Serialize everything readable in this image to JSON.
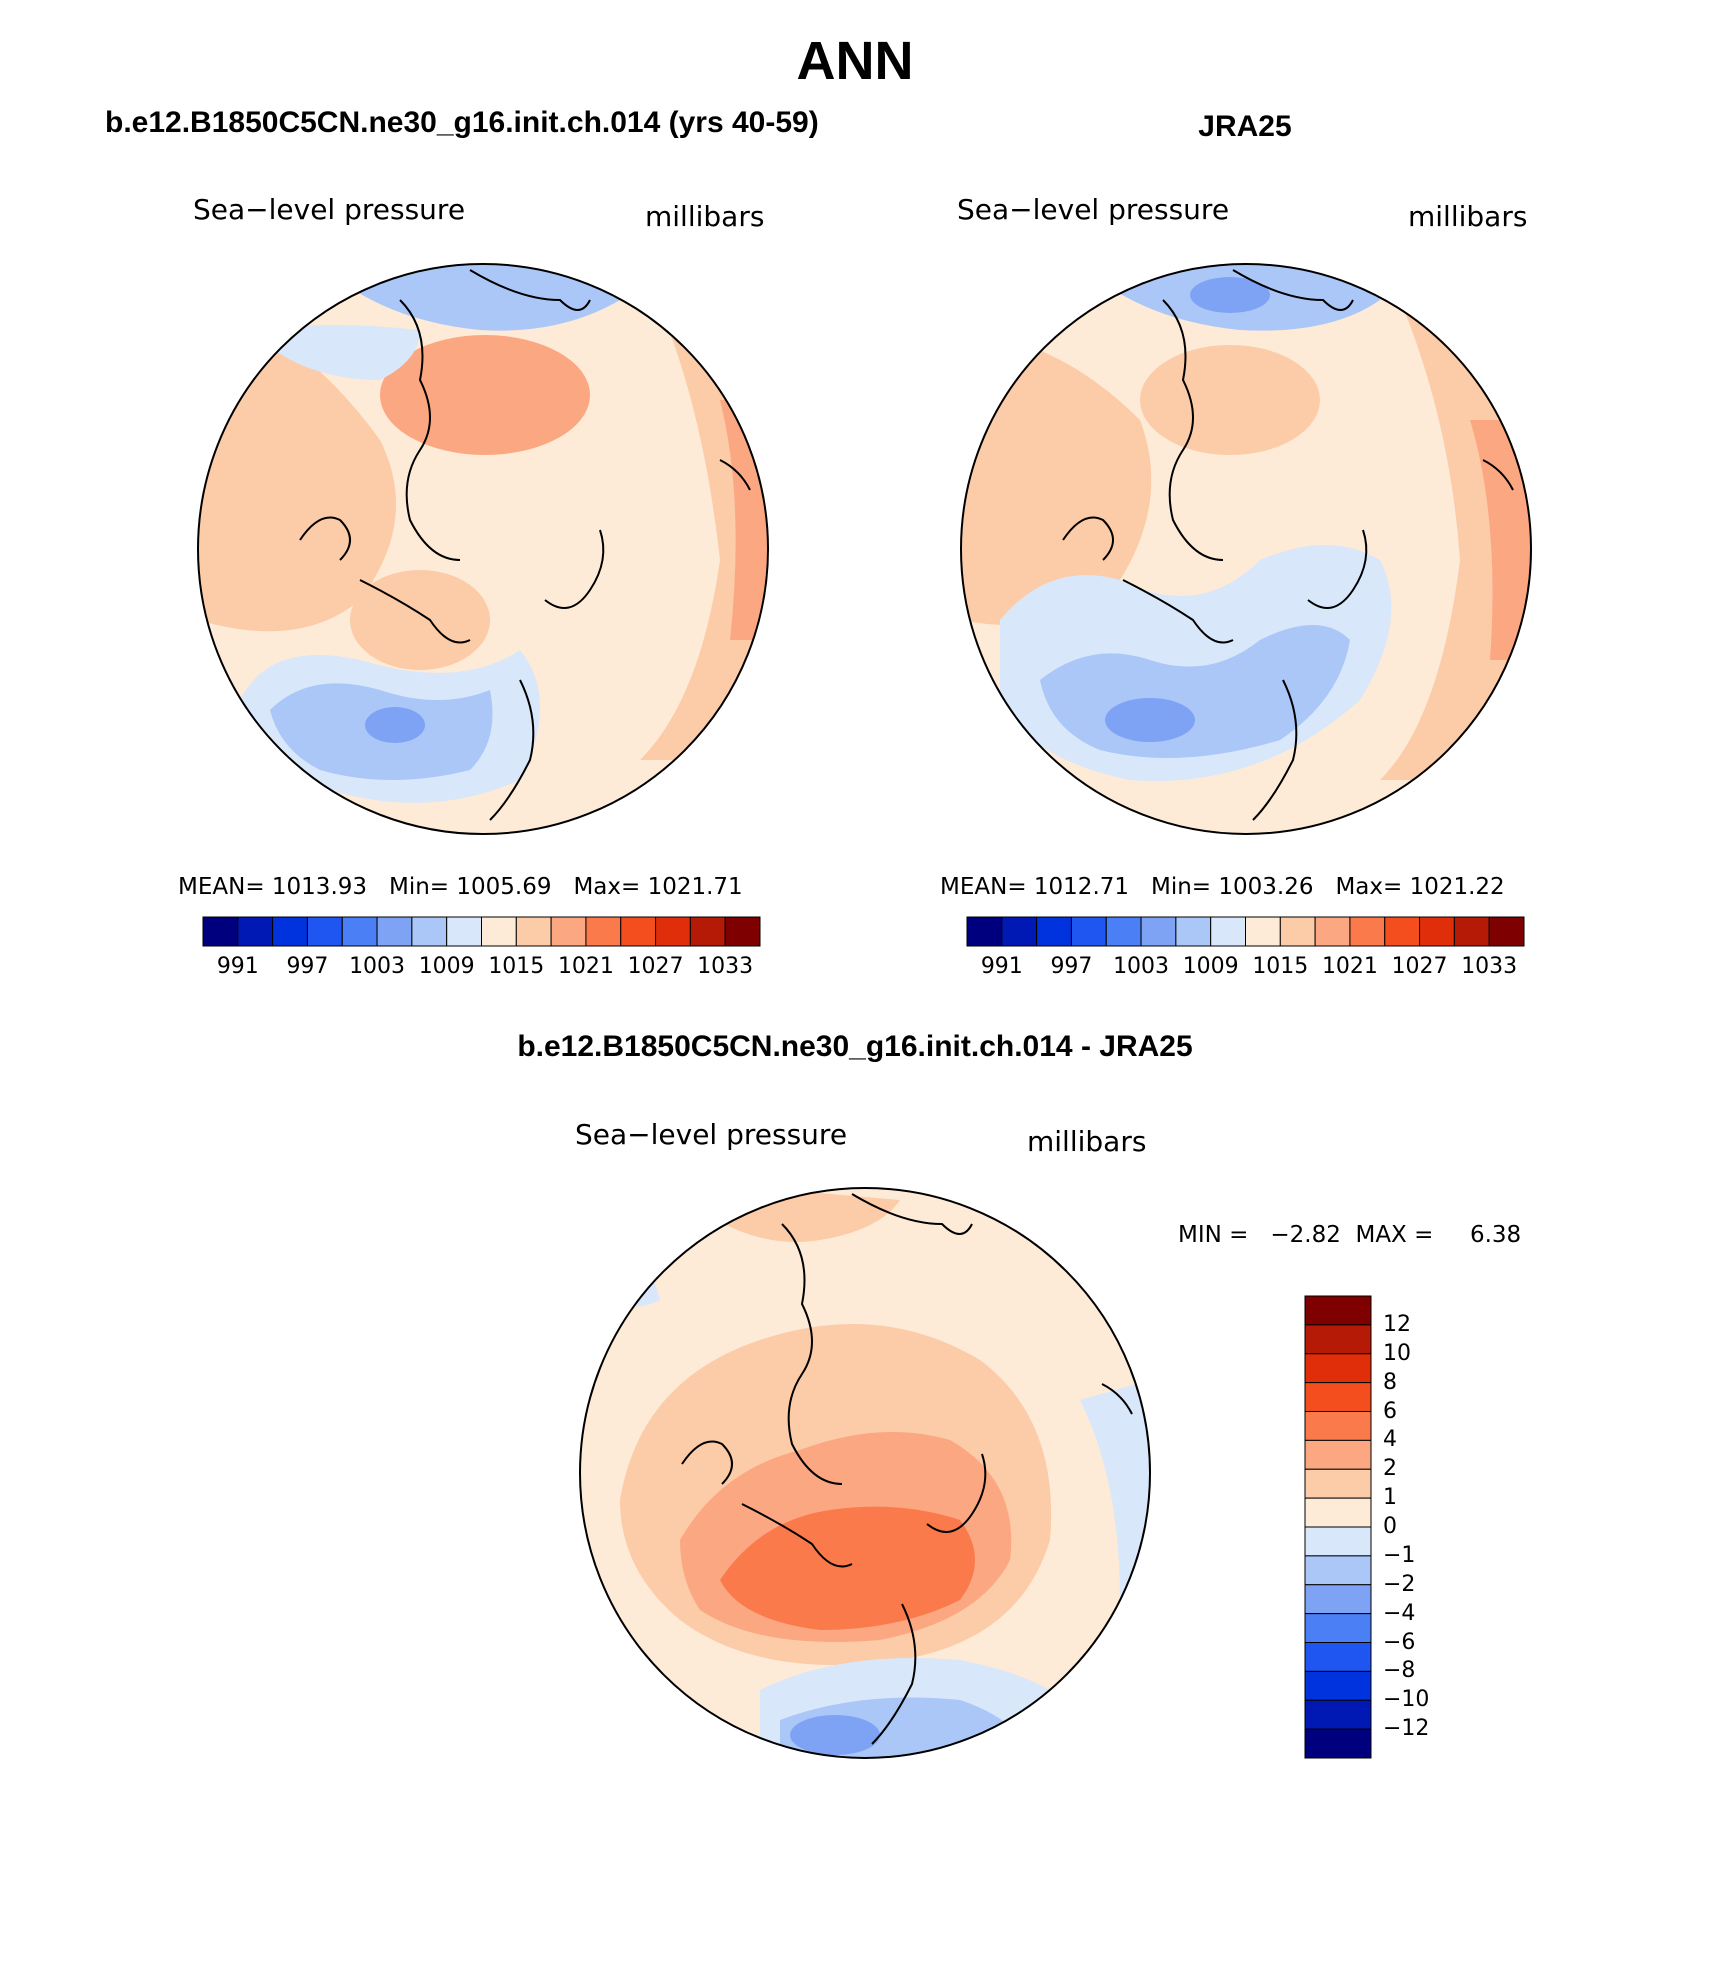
{
  "figure": {
    "title": "ANN"
  },
  "panels": [
    {
      "title": "b.e12.B1850C5CN.ne30_g16.init.ch.014 (yrs 40-59)",
      "variable": "Sea−level pressure",
      "units": "millibars",
      "stats": {
        "mean_label": "MEAN=",
        "mean": "1013.93",
        "min_label": "Min=",
        "min": "1005.69",
        "max_label": "Max=",
        "max": "1021.71"
      }
    },
    {
      "title": "JRA25",
      "variable": "Sea−level pressure",
      "units": "millibars",
      "stats": {
        "mean_label": "MEAN=",
        "mean": "1012.71",
        "min_label": "Min=",
        "min": "1003.26",
        "max_label": "Max=",
        "max": "1021.22"
      }
    },
    {
      "title": "b.e12.B1850C5CN.ne30_g16.init.ch.014 - JRA25",
      "variable": "Sea−level pressure",
      "units": "millibars",
      "stats": {
        "min_label": "MIN =",
        "min": "−2.82",
        "max_label": "MAX =",
        "max": "6.38"
      }
    }
  ],
  "colorbars": {
    "absolute": {
      "colors": [
        "#00007f",
        "#0019b5",
        "#0033dd",
        "#1f55f0",
        "#4a7ff5",
        "#7ea3f4",
        "#abc7f8",
        "#d8e7fa",
        "#fdebd7",
        "#fccba8",
        "#fba882",
        "#fa7a4c",
        "#f54e1e",
        "#e02e0a",
        "#b41a05",
        "#7f0000"
      ],
      "labels": [
        "991",
        "997",
        "1003",
        "1009",
        "1015",
        "1021",
        "1027",
        "1033"
      ]
    },
    "difference": {
      "colors": [
        "#7f0000",
        "#b41a05",
        "#e02e0a",
        "#f54e1e",
        "#fa7a4c",
        "#fba882",
        "#fccba8",
        "#fdebd7",
        "#d8e7fa",
        "#abc7f8",
        "#7ea3f4",
        "#4a7ff5",
        "#1f55f0",
        "#0033dd",
        "#0019b5",
        "#00007f"
      ],
      "labels": [
        "12",
        "10",
        "8",
        "6",
        "4",
        "2",
        "1",
        "0",
        "−1",
        "−2",
        "−4",
        "−6",
        "−8",
        "−10",
        "−12"
      ]
    }
  },
  "map_colors": {
    "background_warm": "#fdebd7",
    "moderate_warm": "#fccba8",
    "strong_warm": "#fba882",
    "very_strong_warm": "#fa7a4c",
    "light_cool": "#d8e7fa",
    "cool": "#abc7f8",
    "stronger_cool": "#7ea3f4"
  }
}
